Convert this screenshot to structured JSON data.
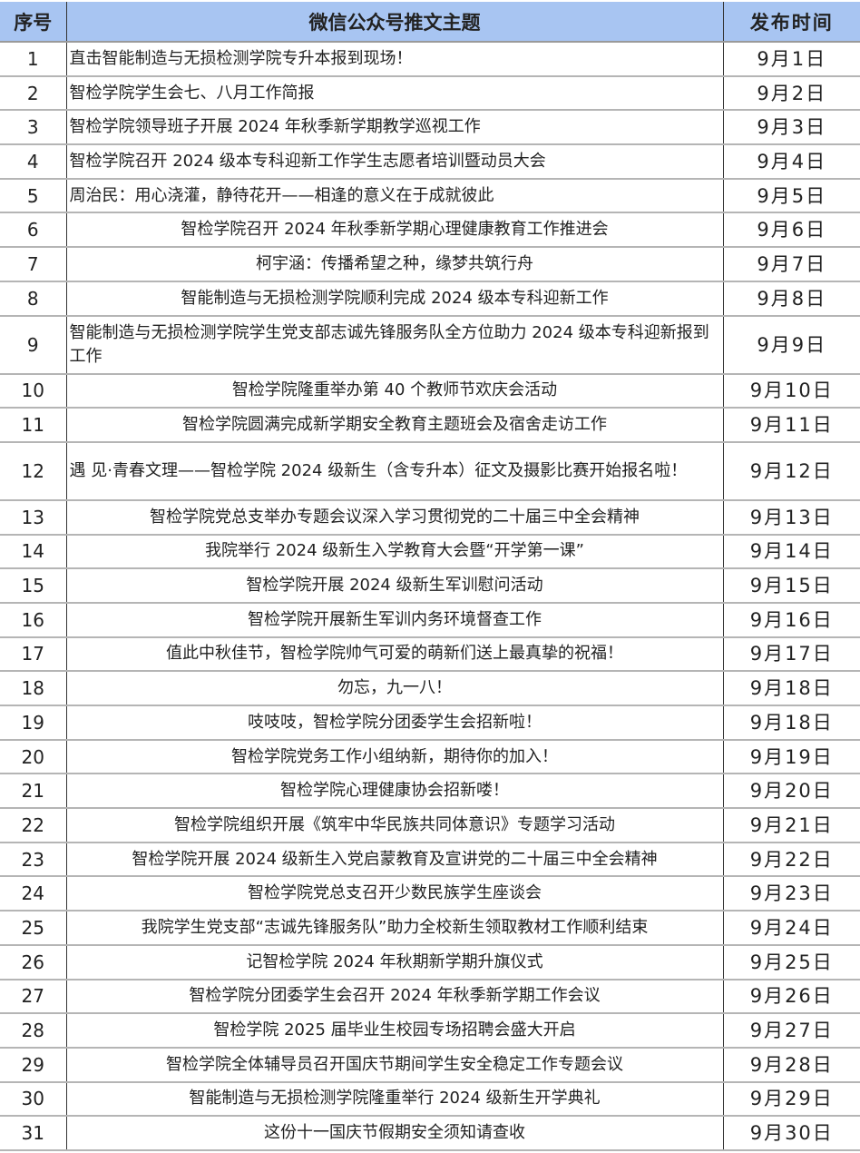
{
  "headers": {
    "index": "序号",
    "title": "微信公众号推文主题",
    "date": "发布时间"
  },
  "header_color": "#a8c5f2",
  "rows": [
    {
      "no": "1",
      "title": "直击智能制造与无损检测学院专升本报到现场！",
      "date": "9月1日"
    },
    {
      "no": "2",
      "title": "智检学院学生会七、八月工作简报",
      "date": "9月2日"
    },
    {
      "no": "3",
      "title": "智检学院领导班子开展 2024 年秋季新学期教学巡视工作",
      "date": "9月3日"
    },
    {
      "no": "4",
      "title": "智检学院召开 2024 级本专科迎新工作学生志愿者培训暨动员大会",
      "date": "9月4日"
    },
    {
      "no": "5",
      "title": "周治民：用心浇灌，静待花开——相逢的意义在于成就彼此",
      "date": "9月5日"
    },
    {
      "no": "6",
      "title": "智检学院召开 2024 年秋季新学期心理健康教育工作推进会",
      "date": "9月6日"
    },
    {
      "no": "7",
      "title": "柯宇涵：传播希望之种，缘梦共筑行舟",
      "date": "9月7日"
    },
    {
      "no": "8",
      "title": "智能制造与无损检测学院顺利完成 2024 级本专科迎新工作",
      "date": "9月8日"
    },
    {
      "no": "9",
      "title": "智能制造与无损检测学院学生党支部志诚先锋服务队全方位助力 2024 级本专科迎新报到工作",
      "date": "9月9日"
    },
    {
      "no": "10",
      "title": "智检学院隆重举办第 40 个教师节欢庆会活动",
      "date": "9月10日"
    },
    {
      "no": "11",
      "title": "智检学院圆满完成新学期安全教育主题班会及宿舍走访工作",
      "date": "9月11日"
    },
    {
      "no": "12",
      "title": "遇 见·青春文理——智检学院 2024 级新生（含专升本）征文及摄影比赛开始报名啦！",
      "date": "9月12日"
    },
    {
      "no": "13",
      "title": "智检学院党总支举办专题会议深入学习贯彻党的二十届三中全会精神",
      "date": "9月13日"
    },
    {
      "no": "14",
      "title": "我院举行 2024 级新生入学教育大会暨“开学第一课”",
      "date": "9月14日"
    },
    {
      "no": "15",
      "title": "智检学院开展 2024 级新生军训慰问活动",
      "date": "9月15日"
    },
    {
      "no": "16",
      "title": "智检学院开展新生军训内务环境督查工作",
      "date": "9月16日"
    },
    {
      "no": "17",
      "title": "值此中秋佳节，智检学院帅气可爱的萌新们送上最真挚的祝福！",
      "date": "9月17日"
    },
    {
      "no": "18",
      "title": "勿忘，九一八！",
      "date": "9月18日"
    },
    {
      "no": "19",
      "title": "吱吱吱，智检学院分团委学生会招新啦！",
      "date": "9月18日"
    },
    {
      "no": "20",
      "title": "智检学院党务工作小组纳新，期待你的加入！",
      "date": "9月19日"
    },
    {
      "no": "21",
      "title": "智检学院心理健康协会招新喽！",
      "date": "9月20日"
    },
    {
      "no": "22",
      "title": "智检学院组织开展《筑牢中华民族共同体意识》专题学习活动",
      "date": "9月21日"
    },
    {
      "no": "23",
      "title": "智检学院开展 2024 级新生入党启蒙教育及宣讲党的二十届三中全会精神",
      "date": "9月22日"
    },
    {
      "no": "24",
      "title": "智检学院党总支召开少数民族学生座谈会",
      "date": "9月23日"
    },
    {
      "no": "25",
      "title": "我院学生党支部“志诚先锋服务队”助力全校新生领取教材工作顺利结束",
      "date": "9月24日"
    },
    {
      "no": "26",
      "title": "记智检学院 2024 年秋期新学期升旗仪式",
      "date": "9月25日"
    },
    {
      "no": "27",
      "title": "智检学院分团委学生会召开 2024 年秋季新学期工作会议",
      "date": "9月26日"
    },
    {
      "no": "28",
      "title": "智检学院 2025 届毕业生校园专场招聘会盛大开启",
      "date": "9月27日"
    },
    {
      "no": "29",
      "title": "智检学院全体辅导员召开国庆节期间学生安全稳定工作专题会议",
      "date": "9月28日"
    },
    {
      "no": "30",
      "title": "智能制造与无损检测学院隆重举行 2024 级新生开学典礼",
      "date": "9月29日"
    },
    {
      "no": "31",
      "title": "这份十一国庆节假期安全须知请查收",
      "date": "9月30日"
    }
  ]
}
